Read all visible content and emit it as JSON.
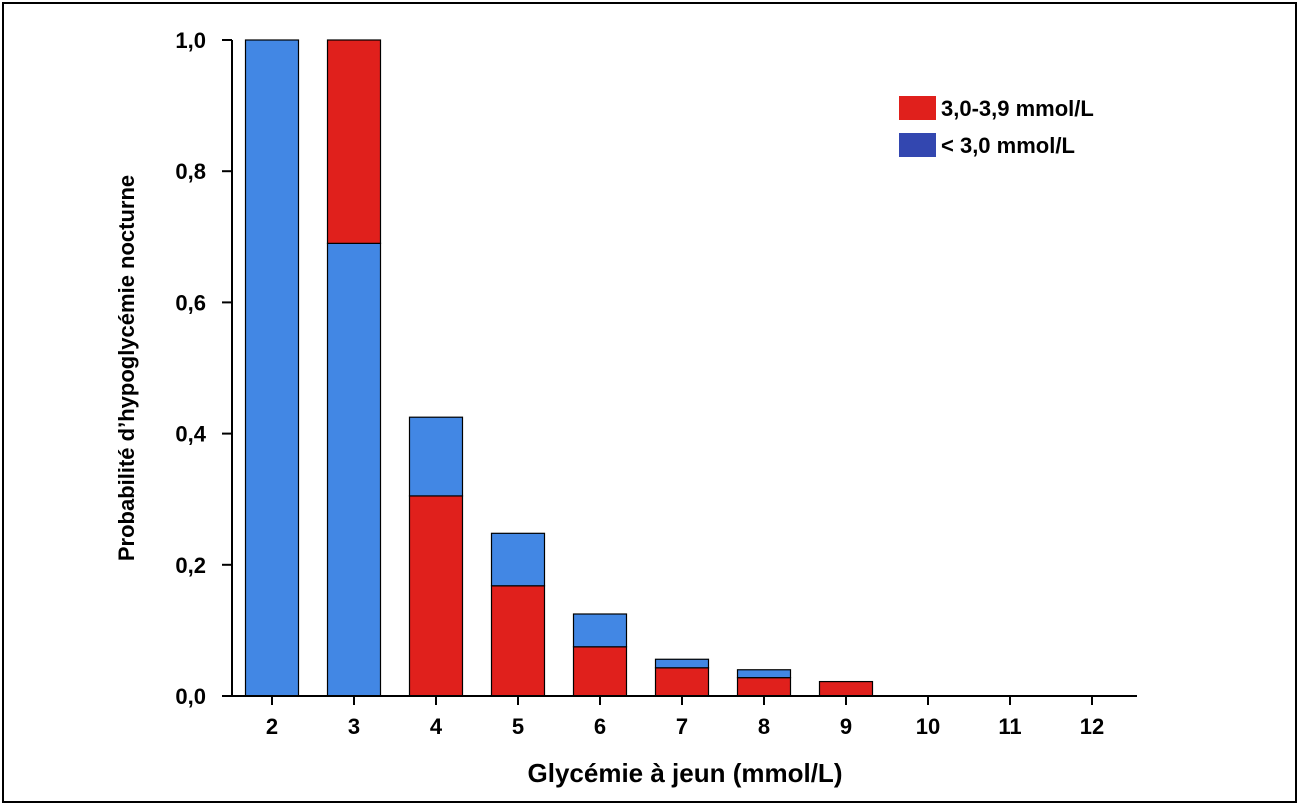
{
  "chart_data": {
    "type": "bar",
    "stacked": true,
    "categories": [
      "2",
      "3",
      "4",
      "5",
      "6",
      "7",
      "8",
      "9",
      "10",
      "11",
      "12"
    ],
    "series": [
      {
        "name": "< 3,0 mmol/L",
        "legend_color": "#3347b0",
        "bar_color": "#4287e4",
        "values": [
          1.0,
          0.69,
          0.12,
          0.08,
          0.05,
          0.013,
          0.012,
          0,
          0,
          0,
          0
        ]
      },
      {
        "name": "3,0-3,9 mmol/L",
        "color": "#e0201c",
        "values": [
          0,
          0.31,
          0.305,
          0.168,
          0.075,
          0.043,
          0.028,
          0.022,
          0,
          0,
          0
        ]
      }
    ],
    "stack_order": [
      "< 3,0 mmol/L",
      "3,0-3,9 mmol/L"
    ],
    "stack_order_by_category": [
      [
        "bottom:< 3,0 mmol/L"
      ],
      [
        "bottom:< 3,0 mmol/L",
        "top:3,0-3,9 mmol/L"
      ],
      [
        "bottom:3,0-3,9 mmol/L",
        "top:< 3,0 mmol/L"
      ],
      [
        "bottom:3,0-3,9 mmol/L",
        "top:< 3,0 mmol/L"
      ],
      [
        "bottom:3,0-3,9 mmol/L",
        "top:< 3,0 mmol/L"
      ],
      [
        "bottom:3,0-3,9 mmol/L",
        "top:< 3,0 mmol/L"
      ],
      [
        "bottom:3,0-3,9 mmol/L",
        "top:< 3,0 mmol/L"
      ],
      [
        "bottom:3,0-3,9 mmol/L"
      ]
    ],
    "xlabel": "Glycémie à jeun (mmol/L)",
    "ylabel": "Probabilité d’hypoglycémie nocturne",
    "ylim": [
      0,
      1.0
    ],
    "yticks": [
      "0,0",
      "0,2",
      "0,4",
      "0,6",
      "0,8",
      "1,0"
    ],
    "ytick_values": [
      0,
      0.2,
      0.4,
      0.6,
      0.8,
      1.0
    ],
    "grid": false,
    "legend_position": "top-right",
    "legend": [
      {
        "label": "3,0-3,9 mmol/L",
        "color": "#e0201c"
      },
      {
        "label": "< 3,0 mmol/L",
        "color": "#3347b0"
      }
    ]
  }
}
